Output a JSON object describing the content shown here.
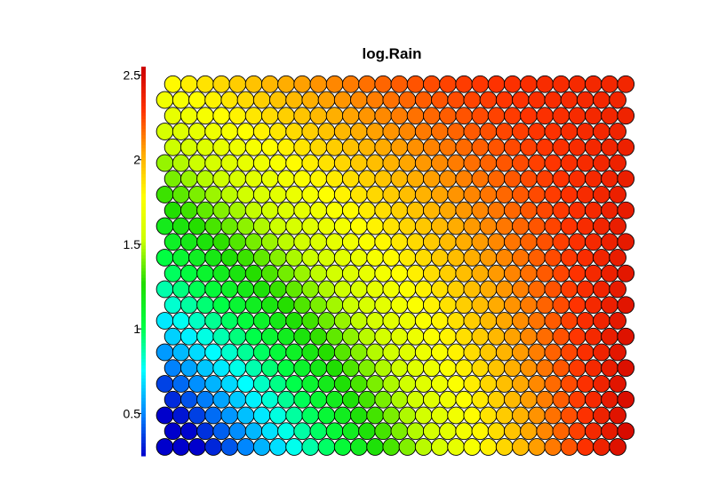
{
  "chart_data": {
    "type": "heatmap",
    "title": "log.Rain",
    "xlabel": "",
    "ylabel": "",
    "grid": false,
    "legend": "left",
    "colorbar": {
      "min": 0.25,
      "max": 2.55,
      "ticks": [
        0.5,
        1,
        1.5,
        2,
        2.5
      ],
      "tick_labels": [
        "0.5",
        "1",
        "1.5",
        "2",
        "2.5"
      ],
      "colors": [
        "#0000cc",
        "#0088ff",
        "#00ffff",
        "#00ff44",
        "#22dd00",
        "#ccff00",
        "#ffff00",
        "#ffaa00",
        "#ff3300",
        "#cc0000"
      ]
    },
    "grid_size": {
      "columns": 29,
      "rows": 24
    },
    "corner_values": {
      "top_left": 1.78,
      "top_right": 2.36,
      "bottom_left": 0.25,
      "bottom_right": 2.5
    },
    "outline_color": "#000000"
  }
}
